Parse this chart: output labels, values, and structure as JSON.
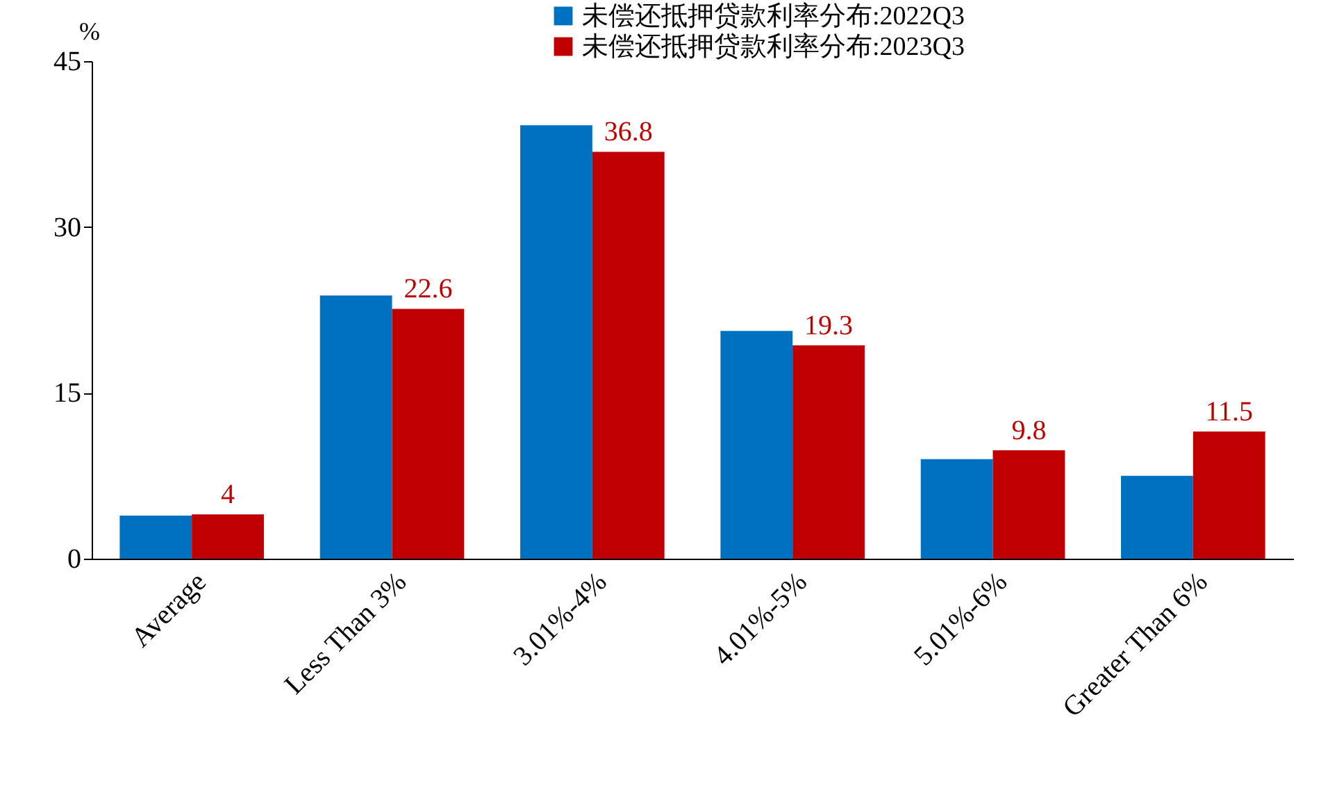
{
  "chart_data": {
    "type": "bar",
    "ylabel": "%",
    "categories": [
      "Average",
      "Less Than 3%",
      "3.01%-4%",
      "4.01%-5%",
      "5.01%-6%",
      "Greater Than 6%"
    ],
    "series": [
      {
        "name": "未偿还抵押贷款利率分布:2022Q3",
        "color": "#0070c0",
        "values": [
          3.9,
          23.8,
          39.2,
          20.6,
          9.0,
          7.5
        ]
      },
      {
        "name": "未偿还抵押贷款利率分布:2023Q3",
        "color": "#c00000",
        "values": [
          4,
          22.6,
          36.8,
          19.3,
          9.8,
          11.5
        ],
        "value_labels": [
          "4",
          "22.6",
          "36.8",
          "19.3",
          "9.8",
          "11.5"
        ]
      }
    ],
    "ylim": [
      0,
      45
    ],
    "yticks": [
      0,
      15,
      30,
      45
    ],
    "legend": "top",
    "grid": false
  }
}
